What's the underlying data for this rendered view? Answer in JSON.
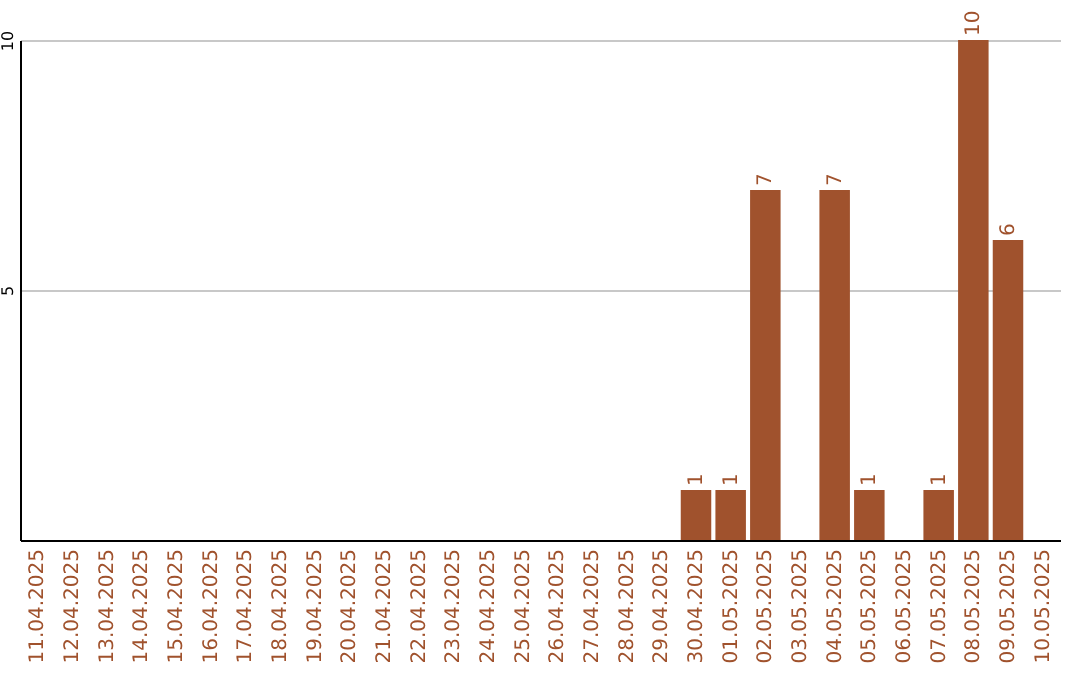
{
  "chart_data": {
    "type": "bar",
    "categories": [
      "11.04.2025",
      "12.04.2025",
      "13.04.2025",
      "14.04.2025",
      "15.04.2025",
      "16.04.2025",
      "17.04.2025",
      "18.04.2025",
      "19.04.2025",
      "20.04.2025",
      "21.04.2025",
      "22.04.2025",
      "23.04.2025",
      "24.04.2025",
      "25.04.2025",
      "26.04.2025",
      "27.04.2025",
      "28.04.2025",
      "29.04.2025",
      "30.04.2025",
      "01.05.2025",
      "02.05.2025",
      "03.05.2025",
      "04.05.2025",
      "05.05.2025",
      "06.05.2025",
      "07.05.2025",
      "08.05.2025",
      "09.05.2025",
      "10.05.2025"
    ],
    "values": [
      0,
      0,
      0,
      0,
      0,
      0,
      0,
      0,
      0,
      0,
      0,
      0,
      0,
      0,
      0,
      0,
      0,
      0,
      0,
      1,
      1,
      7,
      0,
      7,
      1,
      0,
      1,
      10,
      6,
      0
    ],
    "value_labels": [
      null,
      null,
      null,
      null,
      null,
      null,
      null,
      null,
      null,
      null,
      null,
      null,
      null,
      null,
      null,
      null,
      null,
      null,
      null,
      "1",
      "1",
      "7",
      null,
      "7",
      "1",
      null,
      "1",
      "10",
      "6",
      null
    ],
    "color": "#a0522d",
    "ylim": [
      0,
      10
    ],
    "yticks": [
      5,
      10
    ],
    "grid": "y"
  }
}
